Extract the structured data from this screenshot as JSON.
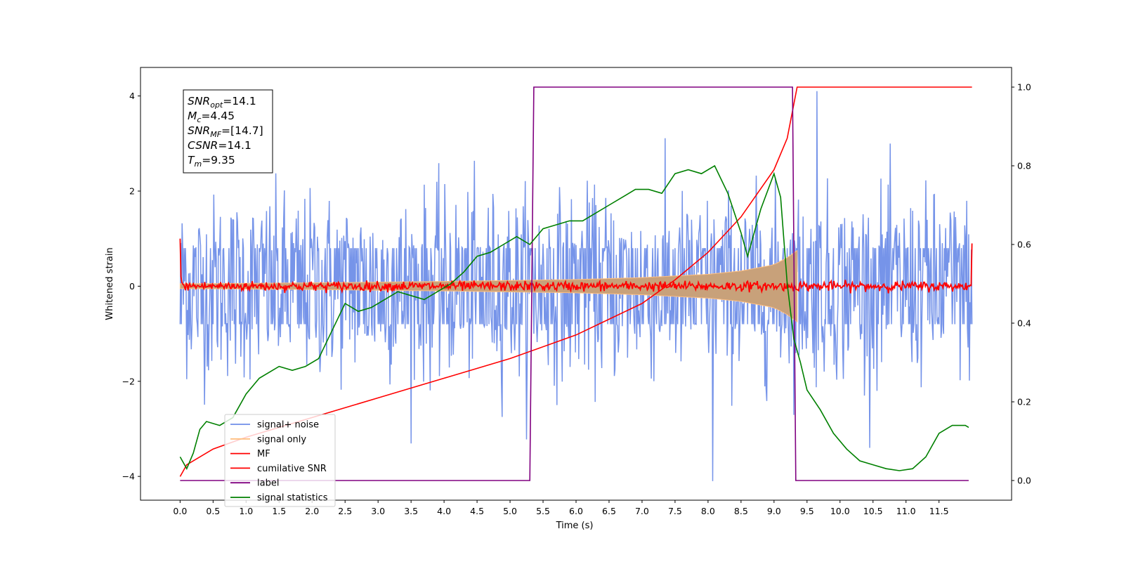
{
  "chart_data": {
    "type": "line",
    "xlabel": "Time (s)",
    "ylabel_left": "Whitened strain",
    "xlim": [
      -0.6,
      12.6
    ],
    "ylim_left": [
      -4.5,
      4.6
    ],
    "ylim_right": [
      -0.05,
      1.05
    ],
    "x_ticks": [
      "0.0",
      "0.5",
      "1.0",
      "1.5",
      "2.0",
      "2.5",
      "3.0",
      "3.5",
      "4.0",
      "4.5",
      "5.0",
      "5.5",
      "6.0",
      "6.5",
      "7.0",
      "7.5",
      "8.0",
      "8.5",
      "9.0",
      "9.5",
      "10.0",
      "10.5",
      "11.0",
      "11.5"
    ],
    "y_ticks_left": [
      "4",
      "2",
      "0",
      "−2",
      "−4"
    ],
    "y_ticks_right": [
      "1.0",
      "0.8",
      "0.6",
      "0.4",
      "0.2",
      "0.0"
    ],
    "grid": false,
    "legend_position": "lower-left",
    "annotation": {
      "lines": [
        {
          "name": "SNR",
          "sub": "opt",
          "value": "=14.1"
        },
        {
          "name": "M",
          "sub": "c",
          "value": "=4.45"
        },
        {
          "name": "SNR",
          "sub": "MF",
          "value": "=[14.7]"
        },
        {
          "name": "CSNR",
          "sub": "",
          "value": "=14.1"
        },
        {
          "name": "T",
          "sub": "m",
          "value": "=9.35"
        }
      ]
    },
    "series": [
      {
        "name": "signal+ noise",
        "color": "#6f8ee8",
        "axis": "left",
        "x_range": [
          0,
          12
        ],
        "noise_band": [
          -2.5,
          2.5
        ],
        "noise_extremes": [
          4.1,
          -4.1
        ]
      },
      {
        "name": "signal only",
        "color": "#ffbf80",
        "fill_color": "#c8a17a",
        "axis": "left",
        "x_range": [
          0,
          9.35
        ],
        "envelope_x": [
          0,
          2,
          4,
          6,
          7,
          8,
          8.5,
          9,
          9.2,
          9.35
        ],
        "envelope_y": [
          0.05,
          0.07,
          0.1,
          0.14,
          0.18,
          0.25,
          0.32,
          0.45,
          0.6,
          0.75
        ]
      },
      {
        "name": "MF",
        "color": "#ff0000",
        "axis": "left",
        "x_range": [
          0,
          12
        ],
        "band": [
          -0.15,
          0.15
        ],
        "start_value": 1.0,
        "end_value": 0.9
      },
      {
        "name": "cumilative SNR",
        "color": "#ff0000",
        "axis": "right",
        "x": [
          0,
          0.1,
          0.5,
          1,
          2,
          3,
          4,
          5,
          6,
          6.5,
          7,
          7.5,
          8,
          8.5,
          9,
          9.2,
          9.35,
          9.4,
          12
        ],
        "y": [
          0.01,
          0.04,
          0.08,
          0.11,
          0.16,
          0.21,
          0.26,
          0.31,
          0.37,
          0.41,
          0.45,
          0.51,
          0.58,
          0.67,
          0.79,
          0.87,
          1.0,
          1.0,
          1.0
        ]
      },
      {
        "name": "label",
        "color": "#800080",
        "axis": "right",
        "x": [
          0,
          5.3,
          5.36,
          9.28,
          9.33,
          11.95
        ],
        "y": [
          0.0,
          0.0,
          1.0,
          1.0,
          0.0,
          0.0
        ]
      },
      {
        "name": "signal statistics",
        "color": "#008000",
        "axis": "right",
        "x": [
          0,
          0.1,
          0.2,
          0.3,
          0.4,
          0.6,
          0.8,
          1.0,
          1.2,
          1.4,
          1.5,
          1.7,
          1.9,
          2.1,
          2.3,
          2.5,
          2.7,
          2.9,
          3.1,
          3.3,
          3.5,
          3.7,
          3.9,
          4.1,
          4.3,
          4.5,
          4.7,
          4.9,
          5.1,
          5.3,
          5.5,
          5.7,
          5.9,
          6.1,
          6.3,
          6.5,
          6.7,
          6.9,
          7.1,
          7.3,
          7.5,
          7.7,
          7.9,
          8.1,
          8.3,
          8.5,
          8.6,
          8.8,
          9.0,
          9.1,
          9.2,
          9.3,
          9.4,
          9.5,
          9.7,
          9.9,
          10.1,
          10.3,
          10.5,
          10.7,
          10.9,
          11.1,
          11.3,
          11.5,
          11.7,
          11.9,
          11.95
        ],
        "y": [
          0.06,
          0.03,
          0.07,
          0.13,
          0.15,
          0.14,
          0.16,
          0.22,
          0.26,
          0.28,
          0.29,
          0.28,
          0.29,
          0.31,
          0.38,
          0.45,
          0.43,
          0.44,
          0.46,
          0.48,
          0.47,
          0.46,
          0.48,
          0.5,
          0.53,
          0.57,
          0.58,
          0.6,
          0.62,
          0.6,
          0.64,
          0.65,
          0.66,
          0.66,
          0.68,
          0.7,
          0.72,
          0.74,
          0.74,
          0.73,
          0.78,
          0.79,
          0.78,
          0.8,
          0.73,
          0.63,
          0.57,
          0.69,
          0.78,
          0.72,
          0.5,
          0.36,
          0.3,
          0.23,
          0.18,
          0.12,
          0.08,
          0.05,
          0.04,
          0.03,
          0.025,
          0.03,
          0.06,
          0.12,
          0.14,
          0.14,
          0.135
        ]
      }
    ]
  }
}
